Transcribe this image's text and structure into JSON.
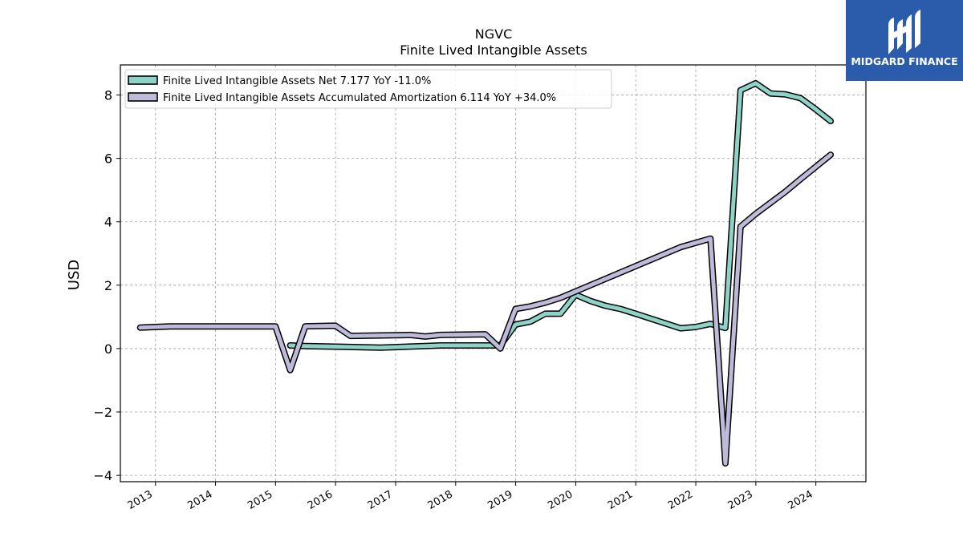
{
  "chart_data": {
    "type": "line",
    "title": "NGVC",
    "subtitle": "Finite Lived Intangible Assets",
    "xlabel": "",
    "ylabel": "USD",
    "xlim": [
      "2012-06-01",
      "2024-11-01"
    ],
    "ylim": [
      -4.2,
      8.95
    ],
    "y_ticks": [
      -4,
      -2,
      0,
      2,
      4,
      6,
      8
    ],
    "x_ticks": [
      "2013",
      "2014",
      "2015",
      "2016",
      "2017",
      "2018",
      "2019",
      "2020",
      "2021",
      "2022",
      "2023",
      "2024"
    ],
    "grid": true,
    "legend_position": "top-left",
    "series": [
      {
        "name": "Finite Lived Intangible Assets Net",
        "legend_label": "Finite Lived Intangible Assets Net  7.177 YoY -11.0%",
        "color": "#8dd3c7",
        "points": [
          [
            "2015-03-31",
            0.1
          ],
          [
            "2015-06-30",
            0.08
          ],
          [
            "2016-01-01",
            0.06
          ],
          [
            "2016-10-01",
            0.03
          ],
          [
            "2017-07-01",
            0.08
          ],
          [
            "2017-10-01",
            0.1
          ],
          [
            "2018-09-30",
            0.1
          ],
          [
            "2018-12-31",
            0.76
          ],
          [
            "2019-03-31",
            0.85
          ],
          [
            "2019-06-30",
            1.1
          ],
          [
            "2019-09-30",
            1.1
          ],
          [
            "2019-12-31",
            1.7
          ],
          [
            "2020-03-31",
            1.5
          ],
          [
            "2020-06-30",
            1.35
          ],
          [
            "2020-09-30",
            1.25
          ],
          [
            "2020-12-31",
            1.1
          ],
          [
            "2021-09-30",
            0.64
          ],
          [
            "2021-12-31",
            0.68
          ],
          [
            "2022-03-31",
            0.78
          ],
          [
            "2022-06-30",
            0.65
          ],
          [
            "2022-09-30",
            8.15
          ],
          [
            "2022-12-31",
            8.37
          ],
          [
            "2023-03-31",
            8.05
          ],
          [
            "2023-06-30",
            8.02
          ],
          [
            "2023-09-30",
            7.9
          ],
          [
            "2023-12-31",
            7.55
          ],
          [
            "2024-03-31",
            7.177
          ]
        ]
      },
      {
        "name": "Finite Lived Intangible Assets Accumulated Amortization",
        "legend_label": "Finite Lived Intangible Assets Accumulated Amortization  6.114 YoY +34.0%",
        "color": "#bebada",
        "points": [
          [
            "2012-09-30",
            0.66
          ],
          [
            "2013-03-31",
            0.7
          ],
          [
            "2014-12-31",
            0.7
          ],
          [
            "2015-03-31",
            -0.68
          ],
          [
            "2015-06-30",
            0.7
          ],
          [
            "2015-12-31",
            0.72
          ],
          [
            "2016-03-31",
            0.4
          ],
          [
            "2016-12-31",
            0.42
          ],
          [
            "2017-03-31",
            0.43
          ],
          [
            "2017-06-30",
            0.38
          ],
          [
            "2017-09-30",
            0.43
          ],
          [
            "2018-06-30",
            0.45
          ],
          [
            "2018-09-30",
            0.0
          ],
          [
            "2018-12-31",
            1.25
          ],
          [
            "2019-03-31",
            1.33
          ],
          [
            "2019-06-30",
            1.45
          ],
          [
            "2019-09-30",
            1.6
          ],
          [
            "2019-12-31",
            1.8
          ],
          [
            "2021-09-30",
            3.2
          ],
          [
            "2022-03-31",
            3.47
          ],
          [
            "2022-06-30",
            -3.62
          ],
          [
            "2022-09-30",
            3.85
          ],
          [
            "2022-12-31",
            4.25
          ],
          [
            "2023-06-30",
            4.95
          ],
          [
            "2023-09-30",
            5.35
          ],
          [
            "2024-03-31",
            6.114
          ]
        ]
      }
    ]
  },
  "logo": {
    "text": "MIDGARD FINANCE",
    "background": "#2b5cab",
    "icon": "midgard-m-logo-icon"
  },
  "colors": {
    "grid": "#a0a0a0",
    "outline": "#000000"
  }
}
